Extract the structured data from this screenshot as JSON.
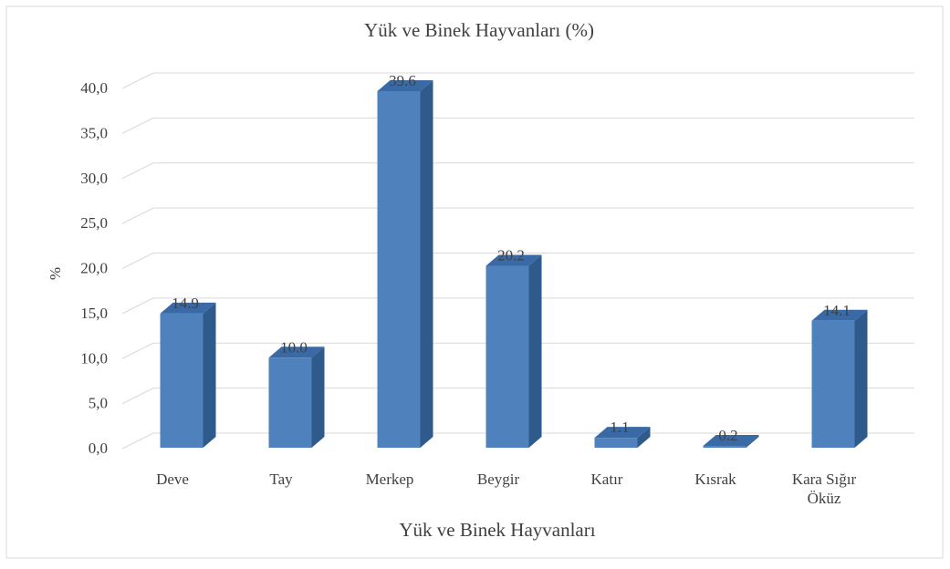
{
  "chart_data": {
    "type": "bar",
    "style": "3d-column",
    "title": "Yük ve Binek Hayvanları  (%)",
    "xlabel": "Yük ve Binek Hayvanları",
    "ylabel": "%",
    "categories": [
      [
        "Deve"
      ],
      [
        "Tay"
      ],
      [
        "Merkep"
      ],
      [
        "Beygir"
      ],
      [
        "Katır"
      ],
      [
        "Kısrak"
      ],
      [
        "Kara Sığır",
        "Öküz"
      ]
    ],
    "values": [
      14.9,
      10.0,
      39.6,
      20.2,
      1.1,
      0.2,
      14.1
    ],
    "value_labels": [
      "14.9",
      "10.0",
      "39.6",
      "20.2",
      "1.1",
      "0.2",
      "14.1"
    ],
    "yticks": [
      "0,0",
      "5,0",
      "10,0",
      "15,0",
      "20,0",
      "25,0",
      "30,0",
      "35,0",
      "40,0"
    ],
    "ylim": [
      0,
      40
    ],
    "grid": true,
    "legend": "none",
    "colors": {
      "bar_front": "#4F81BD",
      "bar_side": "#2E5A8C",
      "bar_top": "#3A6AA6",
      "grid": "#D9D9D9",
      "text": "#404040",
      "border": "#D9D9D9"
    }
  }
}
